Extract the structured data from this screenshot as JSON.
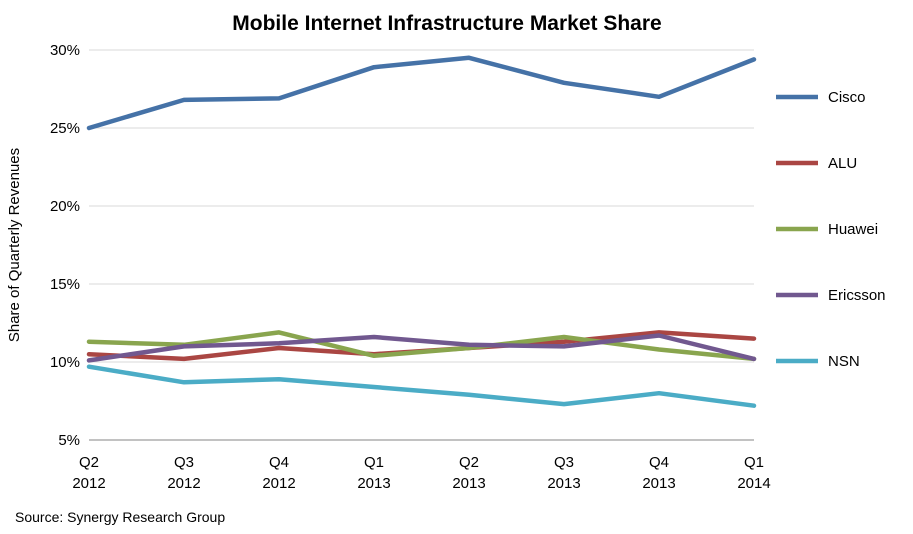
{
  "chart_data": {
    "type": "line",
    "title": "Mobile Internet Infrastructure Market Share",
    "xlabel": "",
    "ylabel": "Share of Quarterly Revenues",
    "source": "Source: Synergy Research Group",
    "categories": [
      [
        "Q2",
        "2012"
      ],
      [
        "Q3",
        "2012"
      ],
      [
        "Q4",
        "2012"
      ],
      [
        "Q1",
        "2013"
      ],
      [
        "Q2",
        "2013"
      ],
      [
        "Q3",
        "2013"
      ],
      [
        "Q4",
        "2013"
      ],
      [
        "Q1",
        "2014"
      ]
    ],
    "ylim": [
      5,
      30
    ],
    "yticks": [
      5,
      10,
      15,
      20,
      25,
      30
    ],
    "ytick_labels": [
      "5%",
      "10%",
      "15%",
      "20%",
      "25%",
      "30%"
    ],
    "grid": true,
    "legend_position": "right",
    "series": [
      {
        "name": "Cisco",
        "color": "#4572A7",
        "values": [
          25.0,
          26.8,
          26.9,
          28.9,
          29.5,
          27.9,
          27.0,
          29.4
        ]
      },
      {
        "name": "ALU",
        "color": "#AA4643",
        "values": [
          10.5,
          10.2,
          10.9,
          10.5,
          10.9,
          11.3,
          11.9,
          11.5
        ]
      },
      {
        "name": "Huawei",
        "color": "#89A54E",
        "values": [
          11.3,
          11.1,
          11.9,
          10.4,
          10.9,
          11.6,
          10.8,
          10.2
        ]
      },
      {
        "name": "Ericsson",
        "color": "#71588F",
        "values": [
          10.1,
          11.0,
          11.2,
          11.6,
          11.1,
          11.0,
          11.7,
          10.2
        ]
      },
      {
        "name": "NSN",
        "color": "#4BACC6",
        "values": [
          9.7,
          8.7,
          8.9,
          8.4,
          7.9,
          7.3,
          8.0,
          7.2
        ]
      }
    ]
  }
}
